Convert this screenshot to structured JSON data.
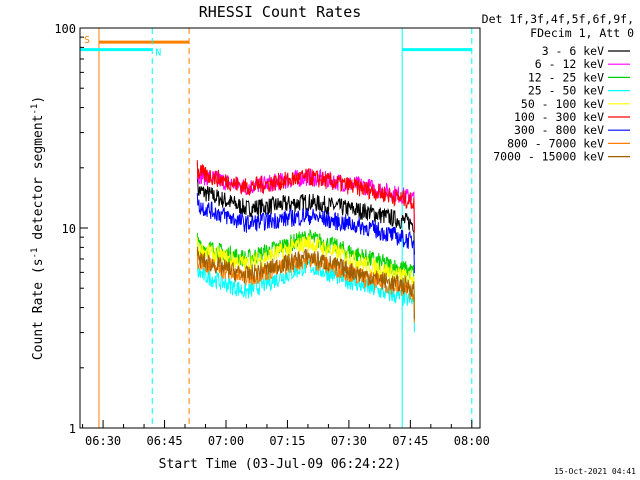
{
  "chart_data": {
    "type": "line",
    "title": "RHESSI Count Rates",
    "xlabel": "Start Time (03-Jul-09 06:24:22)",
    "ylabel_main": "Count Rate (s",
    "ylabel_sup1": "-1",
    "ylabel_mid": " detector segment",
    "ylabel_sup2": "-1",
    "ylabel_end": ")",
    "y_scale": "log",
    "ylim": [
      1,
      100
    ],
    "xlim": [
      "06:24:22",
      "08:02:00"
    ],
    "x_ticks": [
      "06:30",
      "06:45",
      "07:00",
      "07:15",
      "07:30",
      "07:45",
      "08:00"
    ],
    "y_ticks": [
      "1",
      "10",
      "100"
    ],
    "legend_header": [
      "Det 1f,3f,4f,5f,6f,9f,",
      "FDecim 1, Att 0"
    ],
    "series": [
      {
        "name": "3 - 6 keV",
        "color": "#000000",
        "values": [
          {
            "t": "06:53",
            "y": 15.5
          },
          {
            "t": "07:05",
            "y": 12.5
          },
          {
            "t": "07:20",
            "y": 13.5
          },
          {
            "t": "07:35",
            "y": 12
          },
          {
            "t": "07:46",
            "y": 10.5
          }
        ]
      },
      {
        "name": "6 - 12 keV",
        "color": "#ff00ff",
        "values": [
          {
            "t": "06:53",
            "y": 18.5
          },
          {
            "t": "07:05",
            "y": 16
          },
          {
            "t": "07:20",
            "y": 18
          },
          {
            "t": "07:35",
            "y": 16
          },
          {
            "t": "07:46",
            "y": 14
          }
        ]
      },
      {
        "name": "12 - 25 keV",
        "color": "#00d000",
        "values": [
          {
            "t": "06:53",
            "y": 8.2
          },
          {
            "t": "07:05",
            "y": 7
          },
          {
            "t": "07:20",
            "y": 9
          },
          {
            "t": "07:35",
            "y": 7
          },
          {
            "t": "07:46",
            "y": 6
          }
        ]
      },
      {
        "name": "25 - 50 keV",
        "color": "#00ffff",
        "values": [
          {
            "t": "06:53",
            "y": 6
          },
          {
            "t": "07:05",
            "y": 4.8
          },
          {
            "t": "07:20",
            "y": 6.5
          },
          {
            "t": "07:35",
            "y": 5
          },
          {
            "t": "07:46",
            "y": 4.3
          }
        ]
      },
      {
        "name": "50 - 100 keV",
        "color": "#ffff00",
        "values": [
          {
            "t": "06:53",
            "y": 7.8
          },
          {
            "t": "07:05",
            "y": 6.6
          },
          {
            "t": "07:20",
            "y": 8.5
          },
          {
            "t": "07:35",
            "y": 6.5
          },
          {
            "t": "07:46",
            "y": 5.5
          }
        ]
      },
      {
        "name": "100 - 300 keV",
        "color": "#ff0000",
        "values": [
          {
            "t": "06:53",
            "y": 19
          },
          {
            "t": "07:05",
            "y": 16
          },
          {
            "t": "07:20",
            "y": 18
          },
          {
            "t": "07:35",
            "y": 15.5
          },
          {
            "t": "07:46",
            "y": 13.5
          }
        ]
      },
      {
        "name": "300 - 800 keV",
        "color": "#0000ff",
        "values": [
          {
            "t": "06:53",
            "y": 13
          },
          {
            "t": "07:05",
            "y": 10.5
          },
          {
            "t": "07:20",
            "y": 11.5
          },
          {
            "t": "07:35",
            "y": 10
          },
          {
            "t": "07:46",
            "y": 8.5
          }
        ]
      },
      {
        "name": "800 - 7000 keV",
        "color": "#ff8000",
        "values": [
          {
            "t": "06:53",
            "y": 6.8
          },
          {
            "t": "07:05",
            "y": 5.6
          },
          {
            "t": "07:20",
            "y": 7
          },
          {
            "t": "07:35",
            "y": 5.5
          },
          {
            "t": "07:46",
            "y": 4.8
          }
        ]
      },
      {
        "name": "7000 - 15000 keV",
        "color": "#a06000",
        "values": [
          {
            "t": "06:53",
            "y": 7
          },
          {
            "t": "07:05",
            "y": 5.8
          },
          {
            "t": "07:20",
            "y": 7.2
          },
          {
            "t": "07:35",
            "y": 5.7
          },
          {
            "t": "07:46",
            "y": 5
          }
        ]
      }
    ],
    "markers": [
      {
        "label": "S",
        "color": "#ff8000",
        "start": "06:29",
        "end": "06:51",
        "level": 85
      },
      {
        "label": "N",
        "color": "#00ffff",
        "start": "06:24:22",
        "end": "06:42",
        "level": 78
      },
      {
        "label": "",
        "color": "#00ffff",
        "start": "07:43",
        "end": "08:00",
        "level": 78
      }
    ],
    "timestamp": "15-Oct-2021 04:41"
  }
}
